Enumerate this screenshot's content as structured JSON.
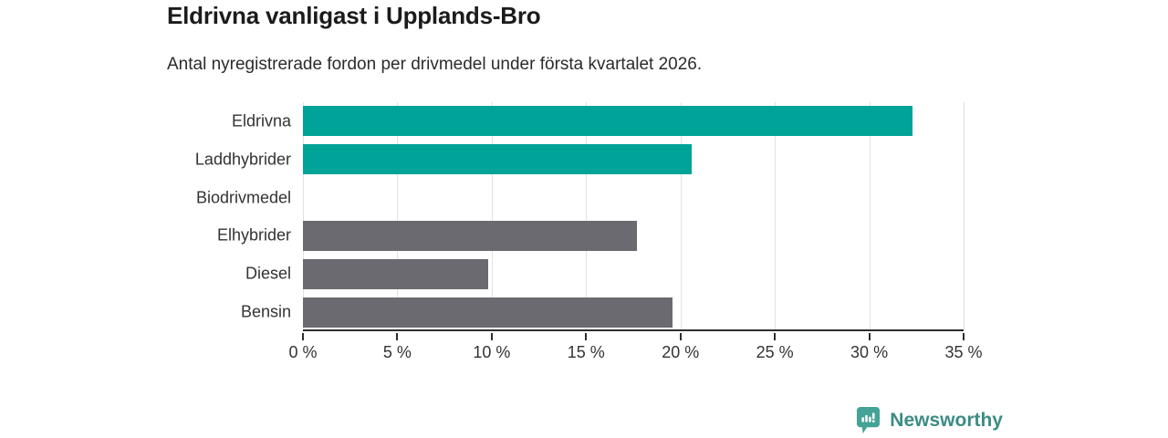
{
  "header": {
    "title": "Eldrivna vanligast i Upplands-Bro",
    "subtitle": "Antal nyregistrerade fordon per drivmedel under första kvartalet 2026."
  },
  "chart_data": {
    "type": "bar",
    "orientation": "horizontal",
    "title": "Eldrivna vanligast i Upplands-Bro",
    "subtitle": "Antal nyregistrerade fordon per drivmedel under första kvartalet 2026.",
    "categories": [
      "Eldrivna",
      "Laddhybrider",
      "Biodrivmedel",
      "Elhybrider",
      "Diesel",
      "Bensin"
    ],
    "values": [
      32.3,
      20.6,
      0,
      17.7,
      9.8,
      19.6
    ],
    "unit": "%",
    "xlim": [
      0,
      35
    ],
    "x_ticks": [
      0,
      5,
      10,
      15,
      20,
      25,
      30,
      35
    ],
    "x_tick_labels": [
      "0 %",
      "5 %",
      "10 %",
      "15 %",
      "20 %",
      "25 %",
      "30 %",
      "35 %"
    ],
    "bar_colors": [
      "#00a398",
      "#00a398",
      "#6b6a70",
      "#6b6a70",
      "#6b6a70",
      "#6b6a70"
    ],
    "highlight_color": "#00a398",
    "default_color": "#6b6a70",
    "grid": true,
    "gridline_color": "#e2e2e2",
    "axis_color": "#2e2e2e",
    "label_color": "#333333"
  },
  "footer": {
    "brand": "Newsworthy",
    "brand_text_color": "#3c8c83",
    "icon_color": "#44a396",
    "icon_name": "newsworthy-logo-icon"
  }
}
